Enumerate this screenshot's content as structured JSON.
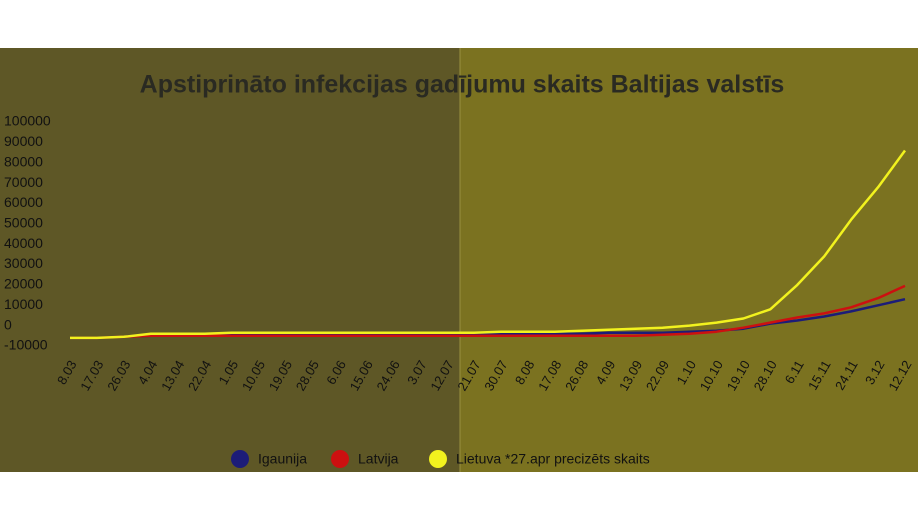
{
  "chart_data": {
    "type": "line",
    "title": "Apstiprināto infekcijas gadījumu skaits Baltijas valstīs",
    "categories": [
      "8.03",
      "17.03",
      "26.03",
      "4.04",
      "13.04",
      "22.04",
      "1.05",
      "10.05",
      "19.05",
      "28.05",
      "6.06",
      "15.06",
      "24.06",
      "3.07",
      "12.07",
      "21.07",
      "30.07",
      "8.08",
      "17.08",
      "26.08",
      "4.09",
      "13.09",
      "22.09",
      "1.10",
      "10.10",
      "19.10",
      "28.10",
      "6.11",
      "15.11",
      "24.11",
      "3.12",
      "12.12"
    ],
    "series": [
      {
        "name": "Igaunija",
        "color": "#1c1c78",
        "values": [
          -6000,
          -6000,
          -5500,
          -5000,
          -4500,
          -4000,
          -4000,
          -4000,
          -4000,
          -4000,
          -4000,
          -4000,
          -4000,
          -4000,
          -4000,
          -4000,
          -4000,
          -4000,
          -4000,
          -4000,
          -3500,
          -3500,
          -3500,
          -3000,
          -2500,
          -1500,
          1000,
          2500,
          4500,
          7000,
          10000,
          13000
        ]
      },
      {
        "name": "Latvija",
        "color": "#cc1010",
        "values": [
          -6000,
          -6000,
          -5500,
          -5000,
          -5000,
          -5000,
          -5000,
          -5000,
          -5000,
          -5000,
          -5000,
          -5000,
          -5000,
          -5000,
          -5000,
          -5000,
          -5000,
          -5000,
          -5000,
          -5000,
          -5000,
          -5000,
          -4500,
          -4000,
          -3000,
          -1000,
          1500,
          4000,
          6000,
          9000,
          13500,
          19500
        ]
      },
      {
        "name": "Lietuva *27.apr precizēts skaits",
        "color": "#f2f21e",
        "values": [
          -6000,
          -6000,
          -5500,
          -4000,
          -4000,
          -4000,
          -3500,
          -3500,
          -3500,
          -3500,
          -3500,
          -3500,
          -3500,
          -3500,
          -3500,
          -3500,
          -3000,
          -3000,
          -3000,
          -2500,
          -2000,
          -1500,
          -1000,
          0,
          1500,
          3500,
          8000,
          20000,
          34000,
          52000,
          68000,
          86000
        ]
      }
    ],
    "ylim": [
      -10000,
      100000
    ],
    "yticks": [
      -10000,
      0,
      10000,
      20000,
      30000,
      40000,
      50000,
      60000,
      70000,
      80000,
      90000,
      100000
    ],
    "grid": false
  }
}
